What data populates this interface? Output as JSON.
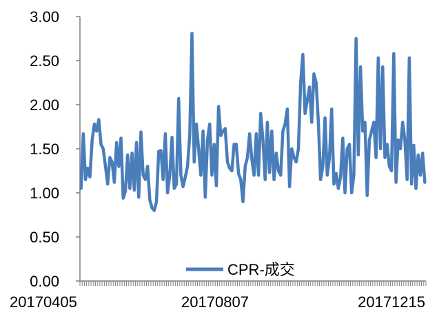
{
  "chart_data": {
    "type": "line",
    "title": "",
    "xlabel": "",
    "ylabel": "",
    "ylim": [
      0,
      3
    ],
    "y_ticks": [
      "0.00",
      "0.50",
      "1.00",
      "1.50",
      "2.00",
      "2.50",
      "3.00"
    ],
    "x_tick_labels": [
      "20170405",
      "20170807",
      "20171215"
    ],
    "legend_position": "bottom-center",
    "grid": false,
    "colors": {
      "series": "#4a7ebb",
      "axis": "#7f7f7f"
    },
    "series": [
      {
        "name": "CPR-成交",
        "values": [
          1.05,
          1.67,
          1.15,
          1.28,
          1.18,
          1.6,
          1.78,
          1.7,
          1.83,
          1.55,
          1.5,
          1.3,
          1.1,
          1.4,
          1.35,
          1.12,
          1.57,
          1.3,
          1.62,
          0.94,
          1.02,
          1.43,
          1.05,
          1.45,
          1.03,
          1.57,
          0.95,
          1.69,
          1.2,
          1.15,
          1.3,
          0.92,
          0.83,
          0.8,
          0.9,
          1.47,
          1.48,
          1.15,
          1.67,
          1.0,
          1.2,
          1.63,
          1.05,
          1.1,
          2.07,
          1.2,
          1.07,
          1.18,
          1.3,
          1.65,
          2.81,
          1.35,
          1.78,
          1.5,
          1.2,
          1.7,
          0.95,
          1.6,
          1.78,
          1.2,
          1.55,
          1.08,
          1.98,
          1.65,
          1.7,
          1.73,
          1.35,
          1.28,
          1.25,
          1.55,
          1.55,
          1.22,
          1.15,
          0.9,
          1.3,
          1.4,
          1.67,
          1.38,
          1.2,
          1.67,
          1.2,
          1.9,
          1.6,
          1.15,
          1.8,
          1.23,
          1.7,
          1.15,
          1.45,
          1.25,
          1.2,
          1.7,
          1.78,
          1.95,
          1.07,
          1.5,
          1.4,
          1.35,
          1.5,
          2.25,
          2.57,
          1.9,
          2.05,
          2.2,
          1.8,
          2.35,
          2.25,
          1.8,
          1.15,
          1.3,
          1.85,
          1.2,
          1.4,
          1.95,
          1.1,
          1.22,
          1.05,
          1.18,
          1.62,
          1.0,
          1.5,
          1.55,
          1.0,
          1.2,
          2.75,
          1.43,
          2.43,
          1.7,
          1.8,
          0.97,
          1.6,
          1.7,
          1.8,
          1.4,
          2.53,
          1.5,
          2.43,
          1.4,
          1.55,
          1.3,
          1.25,
          2.58,
          1.12,
          1.6,
          1.5,
          1.8,
          1.6,
          1.15,
          2.53,
          1.1,
          1.54,
          1.05,
          1.43,
          1.2,
          1.45,
          1.12
        ]
      }
    ]
  }
}
